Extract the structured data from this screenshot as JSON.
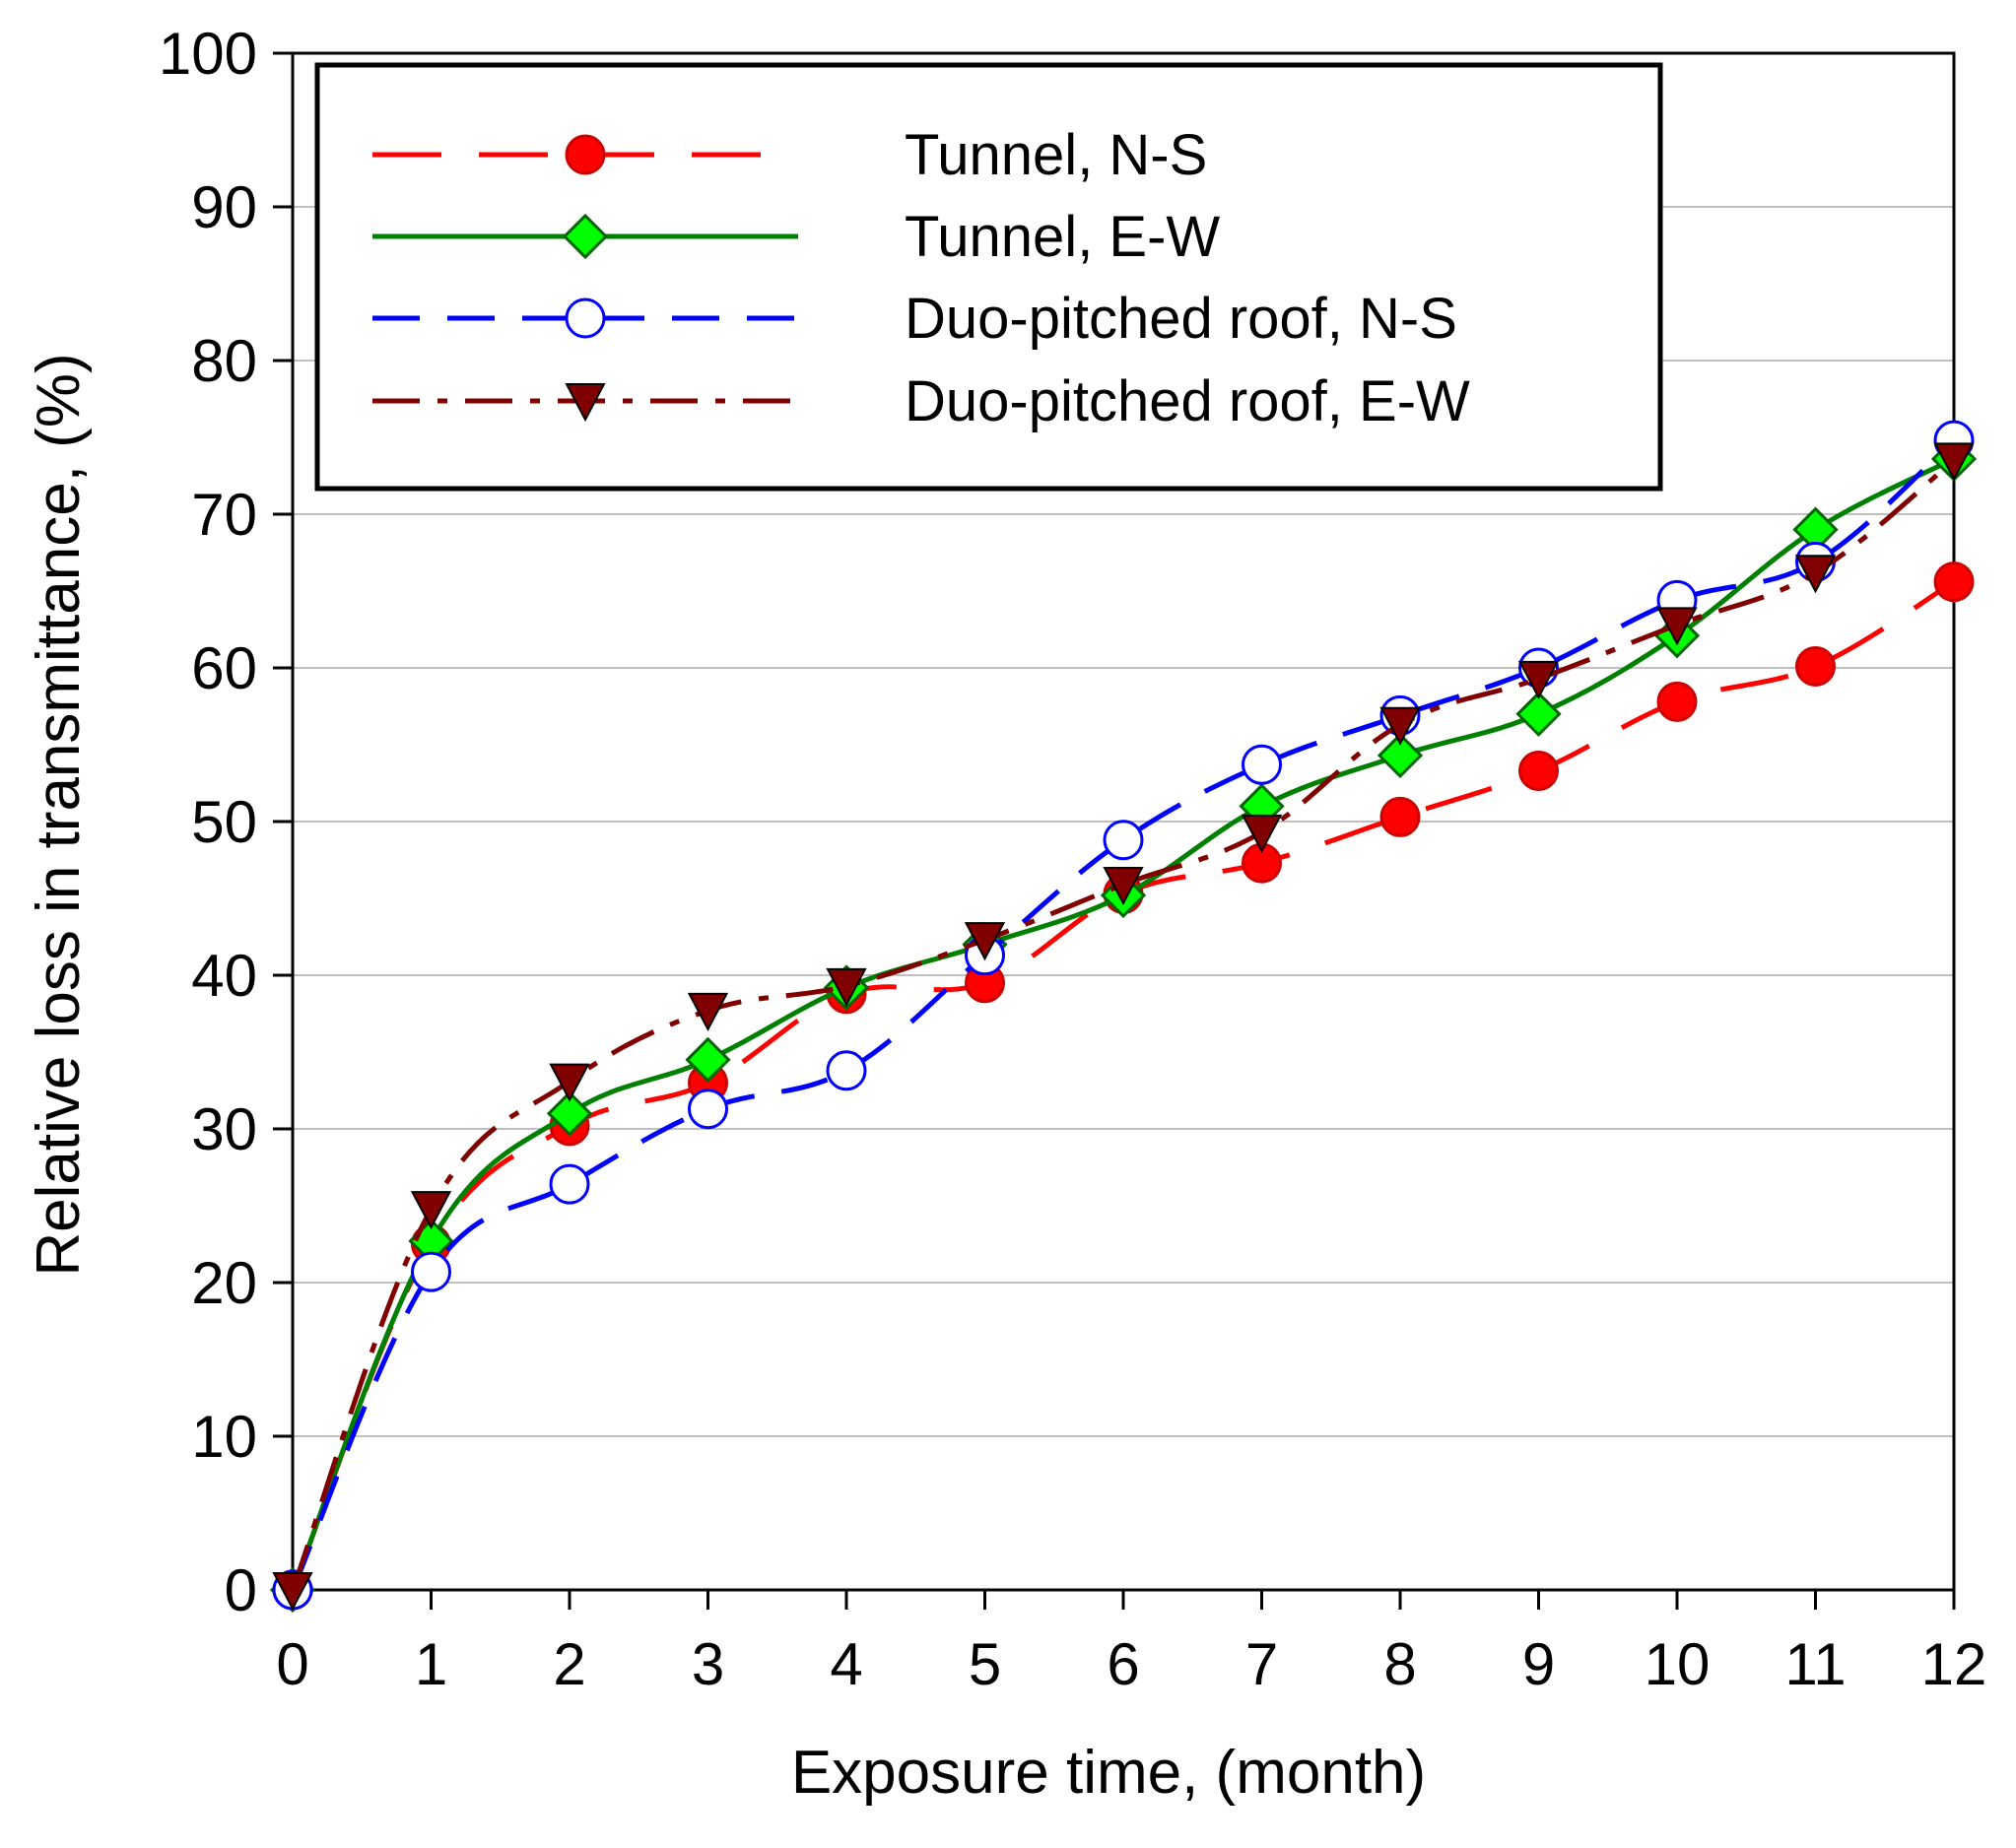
{
  "chart_data": {
    "type": "line",
    "title": "",
    "xlabel": "Exposure time, (month)",
    "ylabel": "Relative loss in transmittance, (%)",
    "xlim": [
      0,
      12
    ],
    "ylim": [
      0,
      100
    ],
    "x_ticks": [
      0,
      1,
      2,
      3,
      4,
      5,
      6,
      7,
      8,
      9,
      10,
      11,
      12
    ],
    "y_ticks": [
      0,
      10,
      20,
      30,
      40,
      50,
      60,
      70,
      80,
      90,
      100
    ],
    "grid": "horizontal",
    "legend_position": "top-left",
    "x": [
      0,
      1,
      2,
      3,
      4,
      5,
      6,
      7,
      8,
      9,
      10,
      11,
      12
    ],
    "series": [
      {
        "name": "Tunnel, N-S",
        "color": "#ff0000",
        "line_style": "dashed-long",
        "marker": "filled-circle",
        "marker_fill": "#ff0000",
        "values": [
          0,
          22.5,
          30.2,
          33,
          38.8,
          39.5,
          45.3,
          47.3,
          50.3,
          53.3,
          57.8,
          60.1,
          65.6
        ]
      },
      {
        "name": "Tunnel, E-W",
        "color": "#008000",
        "line_style": "solid",
        "marker": "filled-diamond",
        "marker_fill": "#00ff00",
        "values": [
          0,
          22.7,
          31,
          34.5,
          39.2,
          42,
          45.2,
          51,
          54.3,
          57,
          62.1,
          69,
          73.6
        ]
      },
      {
        "name": "Duo-pitched roof, N-S",
        "color": "#0000ff",
        "line_style": "dashed",
        "marker": "open-circle",
        "marker_fill": "#ffffff",
        "values": [
          0,
          20.7,
          26.4,
          31.3,
          33.8,
          41.3,
          48.8,
          53.7,
          56.9,
          60,
          64.4,
          66.9,
          74.8
        ]
      },
      {
        "name": "Duo-pitched roof, E-W",
        "color": "#800000",
        "line_style": "dash-dot",
        "marker": "filled-triangle-down",
        "marker_fill": "#800000",
        "values": [
          0,
          24.8,
          33.1,
          37.7,
          39.3,
          42.3,
          45.9,
          49.3,
          56.3,
          59.3,
          62.8,
          66.2,
          73.5
        ]
      }
    ]
  }
}
